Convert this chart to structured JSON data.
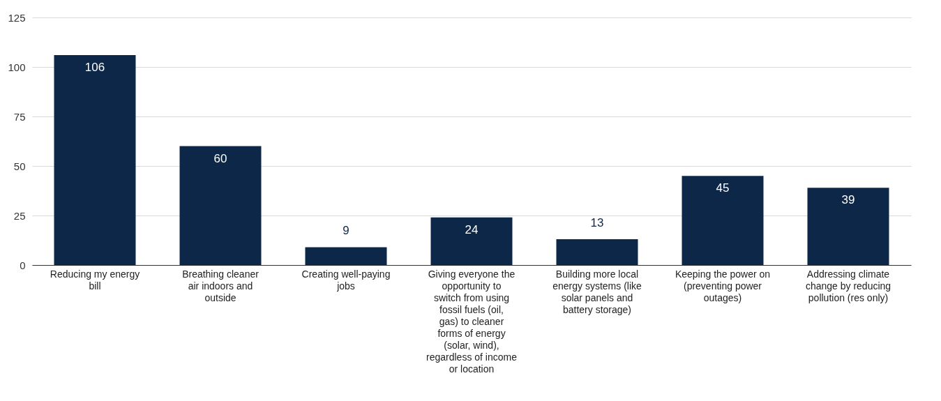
{
  "chart_data": {
    "type": "bar",
    "categories": [
      "Reducing my energy bill",
      "Breathing cleaner air indoors and outside",
      "Creating well-paying jobs",
      "Giving everyone the opportunity to switch from using fossil fuels (oil, gas) to cleaner forms of energy (solar, wind), regardless of income or location",
      "Building more local energy systems (like solar panels and battery storage)",
      "Keeping the power on (preventing power outages)",
      "Addressing climate change by reducing pollution (res only)"
    ],
    "values": [
      106,
      60,
      9,
      24,
      13,
      45,
      39
    ],
    "color": "#0d2748",
    "ylim": [
      0,
      125
    ],
    "yticks": [
      0,
      25,
      50,
      75,
      100,
      125
    ],
    "grid": "y",
    "data_labels": true
  }
}
